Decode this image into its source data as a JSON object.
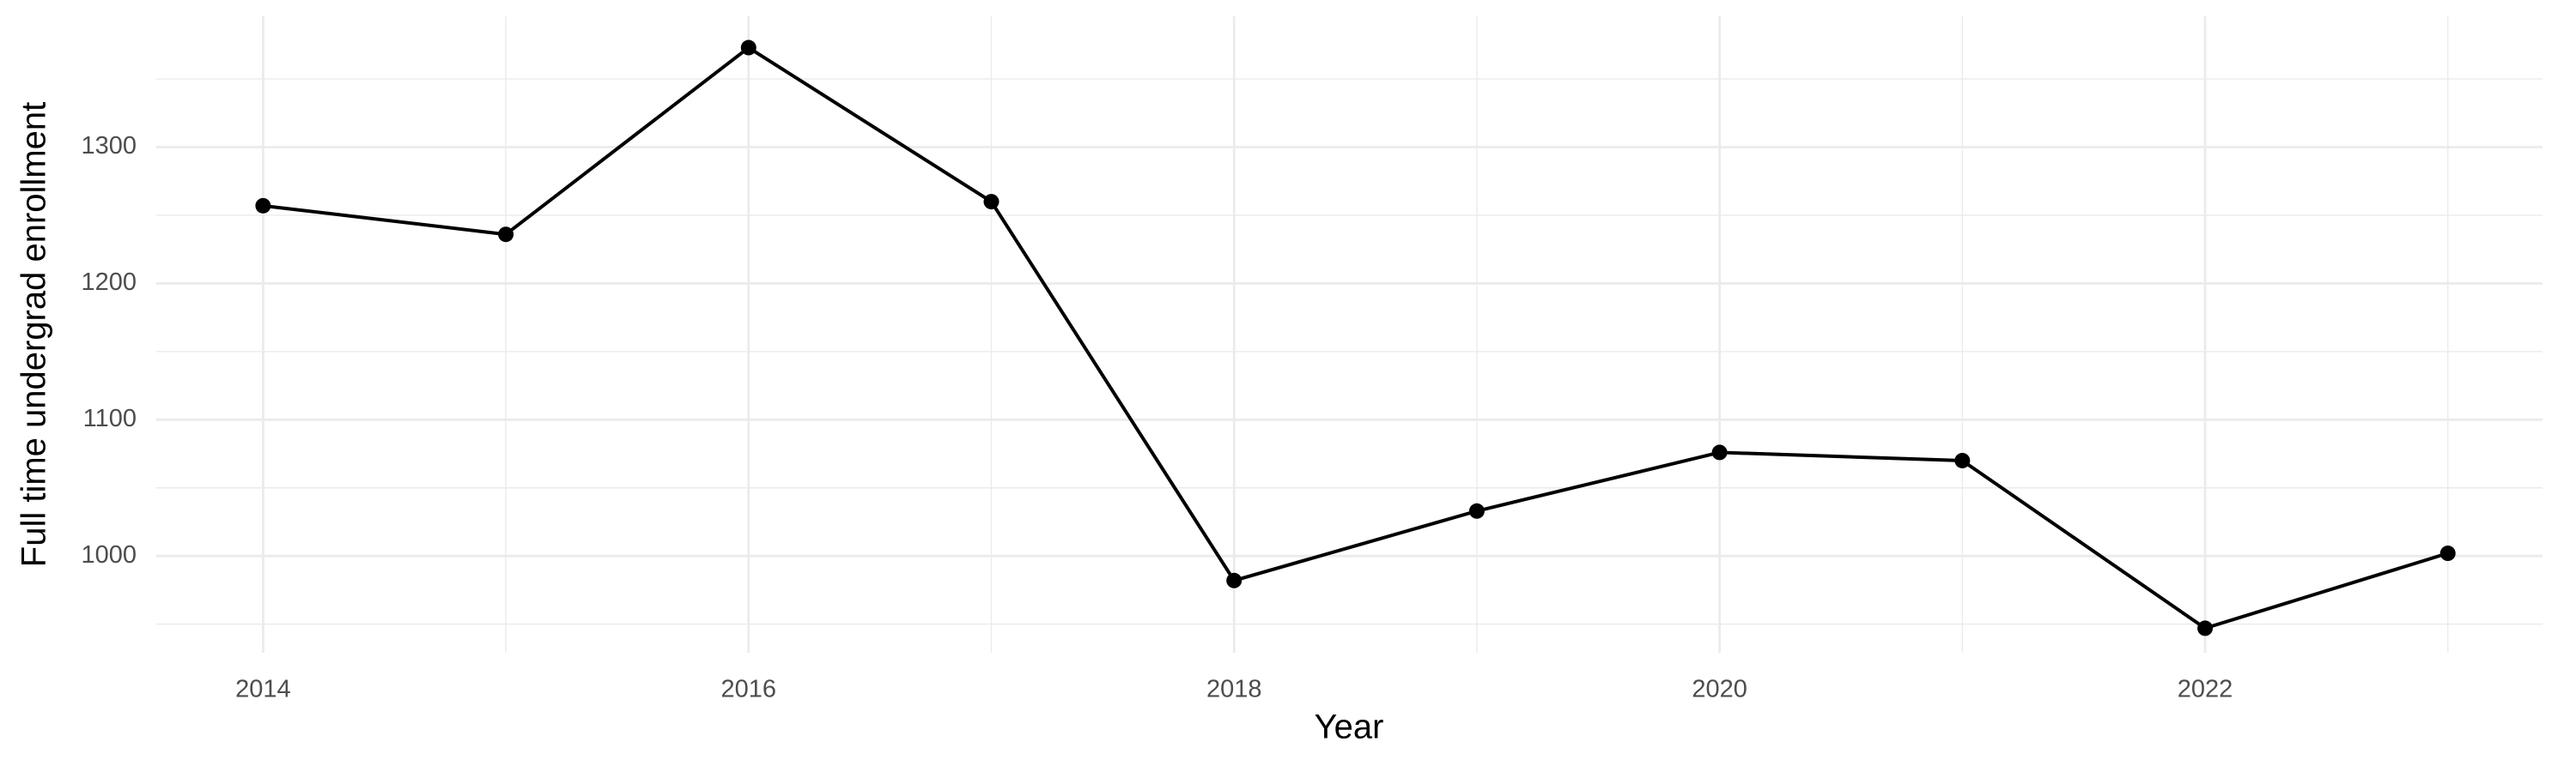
{
  "chart_data": {
    "type": "line",
    "x_label": "Year",
    "y_label": "Full time undergrad enrollment",
    "x": [
      2014,
      2015,
      2016,
      2017,
      2018,
      2019,
      2020,
      2021,
      2022,
      2023
    ],
    "series": [
      {
        "color": "#000000",
        "values": [
          1257,
          1236,
          1373,
          1260,
          982,
          1033,
          1076,
          1070,
          947,
          1002
        ]
      }
    ],
    "xlim": [
      2013.56,
      2023.39
    ],
    "xticks": [
      2014,
      2016,
      2018,
      2020,
      2022
    ],
    "xminorticks": [
      2015,
      2017,
      2019,
      2021,
      2023
    ],
    "ylim": [
      929,
      1396
    ],
    "yticks": [
      1000,
      1100,
      1200,
      1300
    ],
    "yminorticks": [
      950,
      1050,
      1150,
      1250,
      1350
    ],
    "grid": true,
    "markers": true
  }
}
